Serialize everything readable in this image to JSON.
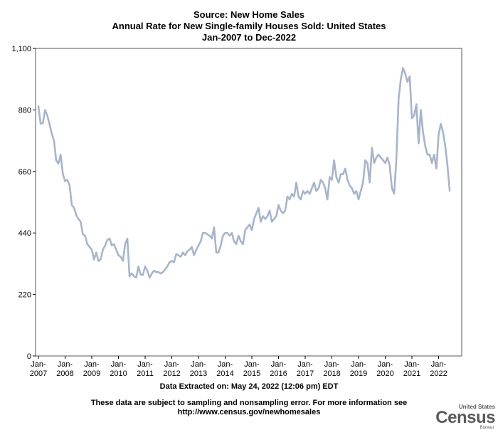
{
  "header": {
    "title_line1": "Source: New Home Sales",
    "title_line2": "Annual Rate for New Single-family Houses Sold: United States",
    "title_line3": "Jan-2007 to Dec-2022"
  },
  "footer": {
    "extracted": "Data Extracted on: May 24, 2022 (12:06 pm) EDT",
    "note_line1": "These data are subject to sampling and nonsampling error. For more information see",
    "note_line2": "http://www.census.gov/newhomesales"
  },
  "logo": {
    "top": "United States",
    "main": "Census",
    "sub": "Bureau"
  },
  "colors": {
    "line": "#a6b5cc",
    "axis": "#000000"
  },
  "chart_data": {
    "type": "line",
    "title": "Annual Rate for New Single-family Houses Sold: United States",
    "subtitle": "Jan-2007 to Dec-2022",
    "xlabel": "",
    "ylabel": "",
    "ylim": [
      0,
      1100
    ],
    "yticks": [
      0,
      220,
      440,
      660,
      880,
      1100
    ],
    "ytick_labels": [
      "0",
      "220",
      "440",
      "660",
      "880",
      "1,100"
    ],
    "xticks": [
      {
        "year": 2007,
        "label1": "Jan-",
        "label2": "2007"
      },
      {
        "year": 2008,
        "label1": "Jan-",
        "label2": "2008"
      },
      {
        "year": 2009,
        "label1": "Jan-",
        "label2": "2009"
      },
      {
        "year": 2010,
        "label1": "Jan-",
        "label2": "2010"
      },
      {
        "year": 2011,
        "label1": "Jan-",
        "label2": "2011"
      },
      {
        "year": 2012,
        "label1": "Jan-",
        "label2": "2012"
      },
      {
        "year": 2013,
        "label1": "Jan-",
        "label2": "2013"
      },
      {
        "year": 2014,
        "label1": "Jan-",
        "label2": "2014"
      },
      {
        "year": 2015,
        "label1": "Jan-",
        "label2": "2015"
      },
      {
        "year": 2016,
        "label1": "Jan-",
        "label2": "2016"
      },
      {
        "year": 2017,
        "label1": "Jan-",
        "label2": "2017"
      },
      {
        "year": 2018,
        "label1": "Jan-",
        "label2": "2018"
      },
      {
        "year": 2019,
        "label1": "Jan-",
        "label2": "2019"
      },
      {
        "year": 2020,
        "label1": "Jan-",
        "label2": "2020"
      },
      {
        "year": 2021,
        "label1": "Jan-",
        "label2": "2021"
      },
      {
        "year": 2022,
        "label1": "Jan-",
        "label2": "2022"
      }
    ],
    "xlim": [
      "Jan-2007",
      "Dec-2022"
    ],
    "grid": false,
    "series": [
      {
        "x_start": "Jan-2007",
        "frequency": "monthly",
        "values": [
          893,
          831,
          833,
          880,
          860,
          830,
          795,
          770,
          700,
          688,
          720,
          650,
          625,
          630,
          610,
          540,
          530,
          505,
          490,
          480,
          435,
          430,
          400,
          390,
          380,
          345,
          370,
          340,
          345,
          380,
          395,
          415,
          420,
          395,
          400,
          380,
          360,
          355,
          340,
          400,
          420,
          285,
          295,
          285,
          280,
          320,
          290,
          290,
          320,
          305,
          280,
          295,
          305,
          300,
          300,
          295,
          300,
          310,
          320,
          335,
          340,
          335,
          365,
          360,
          355,
          370,
          360,
          375,
          380,
          390,
          360,
          380,
          395,
          410,
          440,
          440,
          435,
          430,
          420,
          460,
          370,
          370,
          395,
          430,
          440,
          440,
          430,
          440,
          410,
          400,
          430,
          410,
          400,
          450,
          460,
          470,
          450,
          490,
          510,
          530,
          480,
          500,
          490,
          500,
          520,
          480,
          490,
          500,
          540,
          520,
          510,
          520,
          570,
          560,
          580,
          570,
          620,
          570,
          560,
          590,
          580,
          590,
          580,
          600,
          620,
          590,
          600,
          630,
          620,
          600,
          560,
          640,
          630,
          700,
          640,
          620,
          650,
          650,
          670,
          630,
          610,
          600,
          580,
          590,
          560,
          590,
          620,
          700,
          690,
          620,
          745,
          690,
          710,
          720,
          710,
          700,
          690,
          710,
          680,
          600,
          580,
          700,
          920,
          990,
          1030,
          1010,
          980,
          1000,
          850,
          860,
          900,
          760,
          880,
          800,
          750,
          720,
          720,
          690,
          720,
          670,
          790,
          830,
          800,
          750,
          680,
          591
        ]
      }
    ]
  }
}
